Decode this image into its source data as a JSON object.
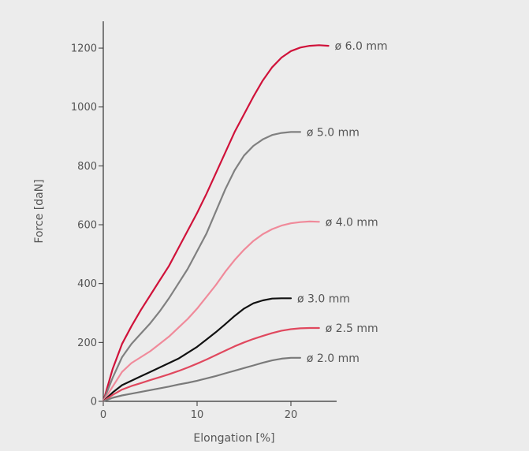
{
  "chart_data": {
    "type": "line",
    "xlabel": "Elongation  [%]",
    "ylabel": "Force  [daN]",
    "xlim": [
      0,
      25
    ],
    "ylim": [
      0,
      1300
    ],
    "x_ticks": [
      0,
      10,
      20
    ],
    "y_ticks": [
      0,
      200,
      400,
      600,
      800,
      1000,
      1200
    ],
    "grid": false,
    "series": [
      {
        "name": "ø 6.0 mm",
        "color": "#d0123a",
        "x": [
          0,
          1,
          2,
          3,
          4,
          5,
          6,
          7,
          8,
          9,
          10,
          11,
          12,
          13,
          14,
          15,
          16,
          17,
          18,
          19,
          20,
          21,
          22,
          23,
          24
        ],
        "y": [
          0,
          110,
          195,
          255,
          310,
          360,
          410,
          460,
          520,
          580,
          640,
          705,
          775,
          845,
          915,
          975,
          1035,
          1090,
          1135,
          1168,
          1190,
          1202,
          1208,
          1210,
          1208
        ]
      },
      {
        "name": "ø 5.0 mm",
        "color": "#808080",
        "x": [
          0,
          1,
          2,
          3,
          4,
          5,
          6,
          7,
          8,
          9,
          10,
          11,
          12,
          13,
          14,
          15,
          16,
          17,
          18,
          19,
          20,
          21
        ],
        "y": [
          0,
          80,
          150,
          195,
          230,
          265,
          305,
          350,
          400,
          450,
          510,
          570,
          645,
          720,
          785,
          835,
          868,
          890,
          905,
          912,
          915,
          915
        ]
      },
      {
        "name": "ø 4.0 mm",
        "color": "#f08a9a",
        "x": [
          0,
          1,
          2,
          3,
          4,
          5,
          6,
          7,
          8,
          9,
          10,
          11,
          12,
          13,
          14,
          15,
          16,
          17,
          18,
          19,
          20,
          21,
          22,
          23
        ],
        "y": [
          0,
          50,
          100,
          130,
          150,
          170,
          195,
          220,
          250,
          280,
          315,
          355,
          395,
          440,
          480,
          515,
          545,
          568,
          585,
          597,
          605,
          609,
          611,
          610
        ]
      },
      {
        "name": "ø 3.0 mm",
        "color": "#111111",
        "x": [
          0,
          1,
          2,
          3,
          4,
          5,
          6,
          7,
          8,
          9,
          10,
          11,
          12,
          13,
          14,
          15,
          16,
          17,
          18,
          19,
          20
        ],
        "y": [
          0,
          30,
          55,
          70,
          85,
          100,
          115,
          130,
          145,
          165,
          185,
          210,
          235,
          262,
          290,
          315,
          333,
          343,
          349,
          350,
          350
        ]
      },
      {
        "name": "ø 2.5 mm",
        "color": "#e0485e",
        "x": [
          0,
          1,
          2,
          3,
          4,
          5,
          6,
          7,
          8,
          9,
          10,
          11,
          12,
          13,
          14,
          15,
          16,
          17,
          18,
          19,
          20,
          21,
          22,
          23
        ],
        "y": [
          0,
          22,
          40,
          52,
          62,
          72,
          82,
          92,
          103,
          115,
          128,
          142,
          157,
          172,
          187,
          200,
          212,
          222,
          232,
          240,
          245,
          248,
          249,
          249
        ]
      },
      {
        "name": "ø 2.0 mm",
        "color": "#7a7a7a",
        "x": [
          0,
          1,
          2,
          3,
          4,
          5,
          6,
          7,
          8,
          9,
          10,
          11,
          12,
          13,
          14,
          15,
          16,
          17,
          18,
          19,
          20,
          21
        ],
        "y": [
          0,
          12,
          20,
          26,
          32,
          38,
          44,
          50,
          57,
          63,
          70,
          78,
          86,
          95,
          104,
          113,
          122,
          131,
          139,
          145,
          148,
          148
        ]
      }
    ]
  }
}
